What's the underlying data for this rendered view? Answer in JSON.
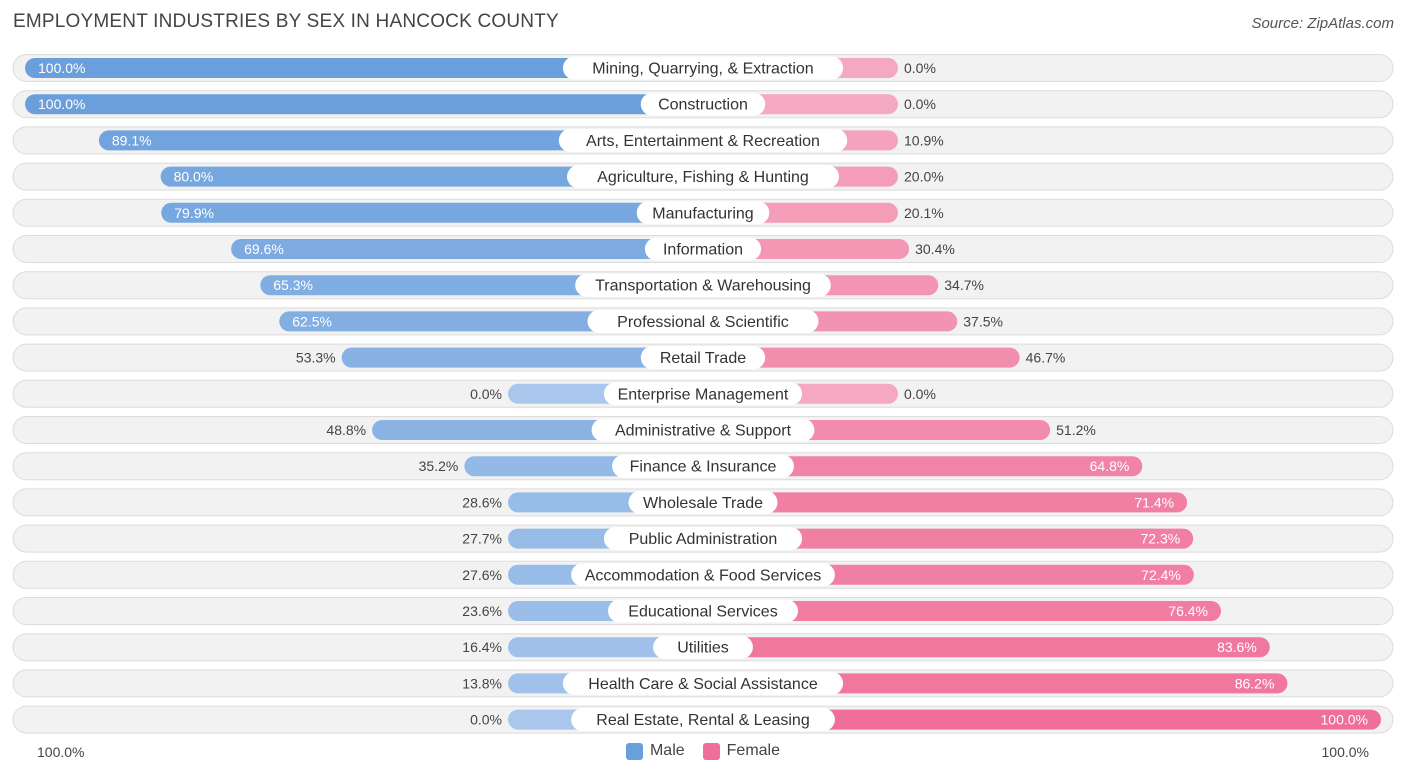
{
  "chart_data": {
    "type": "bar",
    "orientation": "horizontal-diverging",
    "title": "EMPLOYMENT INDUSTRIES BY SEX IN HANCOCK COUNTY",
    "source": "Source: ZipAtlas.com",
    "axis_left_label": "100.0%",
    "axis_right_label": "100.0%",
    "xlim": [
      0,
      100
    ],
    "series": [
      {
        "name": "Male",
        "color": "#6a9fdc",
        "light_color": "#a9c7ec"
      },
      {
        "name": "Female",
        "color": "#ef6f98",
        "light_color": "#f5a8c1"
      }
    ],
    "categories": [
      "Mining, Quarrying, & Extraction",
      "Construction",
      "Arts, Entertainment & Recreation",
      "Agriculture, Fishing & Hunting",
      "Manufacturing",
      "Information",
      "Transportation & Warehousing",
      "Professional & Scientific",
      "Retail Trade",
      "Enterprise Management",
      "Administrative & Support",
      "Finance & Insurance",
      "Wholesale Trade",
      "Public Administration",
      "Accommodation & Food Services",
      "Educational Services",
      "Utilities",
      "Health Care & Social Assistance",
      "Real Estate, Rental & Leasing"
    ],
    "male": [
      100.0,
      100.0,
      89.1,
      80.0,
      79.9,
      69.6,
      65.3,
      62.5,
      53.3,
      0.0,
      48.8,
      35.2,
      28.6,
      27.7,
      27.6,
      23.6,
      16.4,
      13.8,
      0.0
    ],
    "female": [
      0.0,
      0.0,
      10.9,
      20.0,
      20.1,
      30.4,
      34.7,
      37.5,
      46.7,
      0.0,
      51.2,
      64.8,
      71.4,
      72.3,
      72.4,
      76.4,
      83.6,
      86.2,
      100.0
    ],
    "male_labels": [
      "100.0%",
      "100.0%",
      "89.1%",
      "80.0%",
      "79.9%",
      "69.6%",
      "65.3%",
      "62.5%",
      "53.3%",
      "0.0%",
      "48.8%",
      "35.2%",
      "28.6%",
      "27.7%",
      "27.6%",
      "23.6%",
      "16.4%",
      "13.8%",
      "0.0%"
    ],
    "female_labels": [
      "0.0%",
      "0.0%",
      "10.9%",
      "20.0%",
      "20.1%",
      "30.4%",
      "34.7%",
      "37.5%",
      "46.7%",
      "0.0%",
      "51.2%",
      "64.8%",
      "71.4%",
      "72.3%",
      "72.4%",
      "76.4%",
      "83.6%",
      "86.2%",
      "100.0%"
    ]
  }
}
